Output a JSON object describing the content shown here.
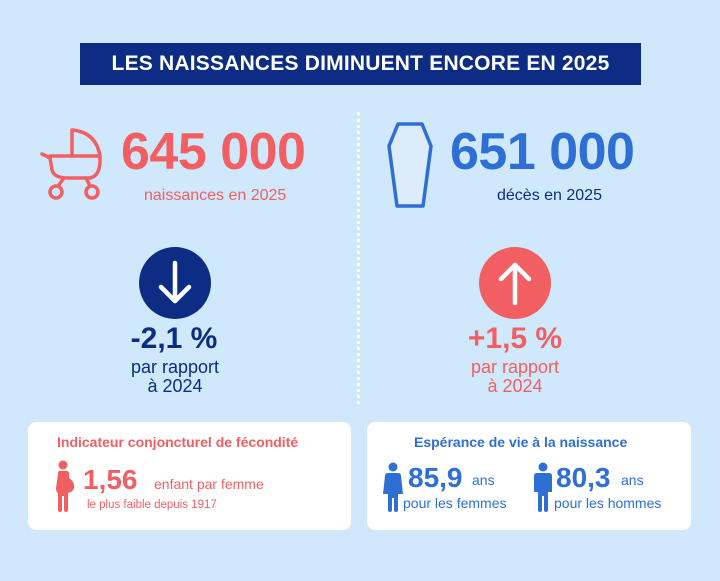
{
  "title": "LES NAISSANCES DIMINUENT ENCORE EN 2025",
  "births": {
    "value": "645 000",
    "label": "naissances en 2025",
    "change": "-2,1 %",
    "comparison_line1": "par rapport",
    "comparison_line2": "à 2024"
  },
  "deaths": {
    "value": "651 000",
    "label": "décès en 2025",
    "change": "+1,5 %",
    "comparison_line1": "par rapport",
    "comparison_line2": "à 2024"
  },
  "fertility": {
    "title": "Indicateur conjoncturel de fécondité",
    "value": "1,56",
    "unit": "enfant par femme",
    "note": "le plus faible depuis 1917"
  },
  "life_expectancy": {
    "title": "Espérance de vie à la naissance",
    "women": {
      "value": "85,9",
      "unit": "ans",
      "label": "pour les femmes"
    },
    "men": {
      "value": "80,3",
      "unit": "ans",
      "label": "pour les hommes"
    }
  },
  "colors": {
    "navy": "#0c2d83",
    "red": "#f25f62",
    "blue": "#2e6fd6",
    "background": "#cfe8fb"
  }
}
